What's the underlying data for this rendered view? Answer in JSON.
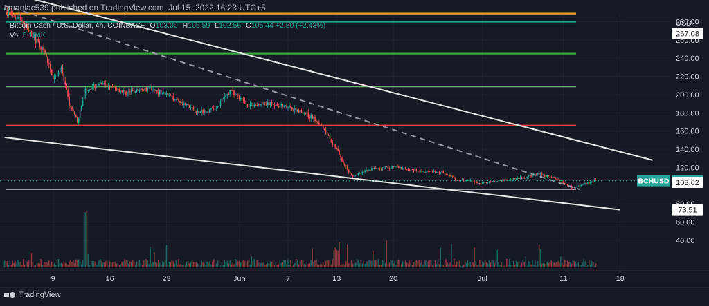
{
  "header": {
    "publisher": "cmaniac539 published on TradingView.com, Jul 15, 2022 16:23 UTC+5"
  },
  "legend": {
    "symbol": "Bitcoin Cash / U.S. Dollar, 4h, COINBASE",
    "open_label": "O",
    "open": "103.00",
    "high_label": "H",
    "high": "105.59",
    "low_label": "L",
    "low": "102.56",
    "close_label": "C",
    "close": "105.44",
    "change": "+2.50 (+2.43%)",
    "volume_label": "Vol",
    "volume": "5.104K"
  },
  "footer": {
    "brand": "TradingView"
  },
  "colors": {
    "background": "#161a25",
    "up": "#26a69a",
    "down": "#ef5350",
    "orange_line": "#f0a030",
    "teal_line": "#1fa88a",
    "green_line": "#43a047",
    "light_green_line": "#66bb6a",
    "red_line": "#f23645",
    "gray_line": "#9598a1",
    "white_line": "#e8e8e8",
    "dashed_line": "#9598a1"
  },
  "chart_data": {
    "type": "candlestick",
    "currency_label": "USD",
    "y_ticks": [
      "280.00",
      "260.00",
      "240.00",
      "220.00",
      "200.00",
      "180.00",
      "160.00",
      "140.00",
      "120.00",
      "80.00",
      "60.00",
      "40.00"
    ],
    "y_range": [
      30,
      300
    ],
    "x_ticks": [
      "9",
      "16",
      "23",
      "Jun",
      "7",
      "13",
      "20",
      "Jul",
      "11",
      "18"
    ],
    "price_badges": [
      {
        "label": "267.08",
        "value": 267.08,
        "style": "white"
      },
      {
        "symbol": "BCHUSD",
        "label": "105.44",
        "value": 105.44,
        "style": "green"
      },
      {
        "label": "103.62",
        "value": 103.62,
        "style": "white"
      },
      {
        "label": "73.51",
        "value": 73.51,
        "style": "white"
      }
    ],
    "horizontal_levels": [
      {
        "value": 289,
        "color": "orange"
      },
      {
        "value": 280,
        "color": "teal"
      },
      {
        "value": 245,
        "color": "green"
      },
      {
        "value": 209,
        "color": "light_green"
      },
      {
        "value": 166,
        "color": "red"
      },
      {
        "value": 96,
        "color": "gray"
      }
    ],
    "trend_lines": [
      {
        "from": {
          "date": "2022-05-03",
          "price": 313
        },
        "to": {
          "date": "2022-07-22",
          "price": 128
        },
        "style": "solid"
      },
      {
        "from": {
          "date": "2022-05-03",
          "price": 153
        },
        "to": {
          "date": "2022-07-18",
          "price": 73.5
        },
        "style": "solid"
      },
      {
        "from": {
          "date": "2022-05-03",
          "price": 298
        },
        "to": {
          "date": "2022-07-13",
          "price": 96
        },
        "style": "dashed"
      }
    ],
    "price_path": [
      {
        "date": "2022-05-03",
        "price": 293
      },
      {
        "date": "2022-05-05",
        "price": 283
      },
      {
        "date": "2022-05-06",
        "price": 270
      },
      {
        "date": "2022-05-08",
        "price": 245
      },
      {
        "date": "2022-05-09",
        "price": 218
      },
      {
        "date": "2022-05-10",
        "price": 228
      },
      {
        "date": "2022-05-11",
        "price": 190
      },
      {
        "date": "2022-05-12",
        "price": 170
      },
      {
        "date": "2022-05-13",
        "price": 205
      },
      {
        "date": "2022-05-15",
        "price": 212
      },
      {
        "date": "2022-05-18",
        "price": 202
      },
      {
        "date": "2022-05-21",
        "price": 207
      },
      {
        "date": "2022-05-24",
        "price": 196
      },
      {
        "date": "2022-05-27",
        "price": 180
      },
      {
        "date": "2022-05-29",
        "price": 185
      },
      {
        "date": "2022-05-31",
        "price": 205
      },
      {
        "date": "2022-06-02",
        "price": 188
      },
      {
        "date": "2022-06-05",
        "price": 190
      },
      {
        "date": "2022-06-07",
        "price": 186
      },
      {
        "date": "2022-06-09",
        "price": 180
      },
      {
        "date": "2022-06-11",
        "price": 168
      },
      {
        "date": "2022-06-13",
        "price": 140
      },
      {
        "date": "2022-06-14",
        "price": 122
      },
      {
        "date": "2022-06-15",
        "price": 110
      },
      {
        "date": "2022-06-17",
        "price": 118
      },
      {
        "date": "2022-06-20",
        "price": 121
      },
      {
        "date": "2022-06-23",
        "price": 116
      },
      {
        "date": "2022-06-26",
        "price": 115
      },
      {
        "date": "2022-06-28",
        "price": 106
      },
      {
        "date": "2022-07-01",
        "price": 103
      },
      {
        "date": "2022-07-04",
        "price": 106
      },
      {
        "date": "2022-07-06",
        "price": 108
      },
      {
        "date": "2022-07-08",
        "price": 113
      },
      {
        "date": "2022-07-10",
        "price": 108
      },
      {
        "date": "2022-07-12",
        "price": 98
      },
      {
        "date": "2022-07-13",
        "price": 100
      },
      {
        "date": "2022-07-15",
        "price": 105.44
      }
    ]
  }
}
